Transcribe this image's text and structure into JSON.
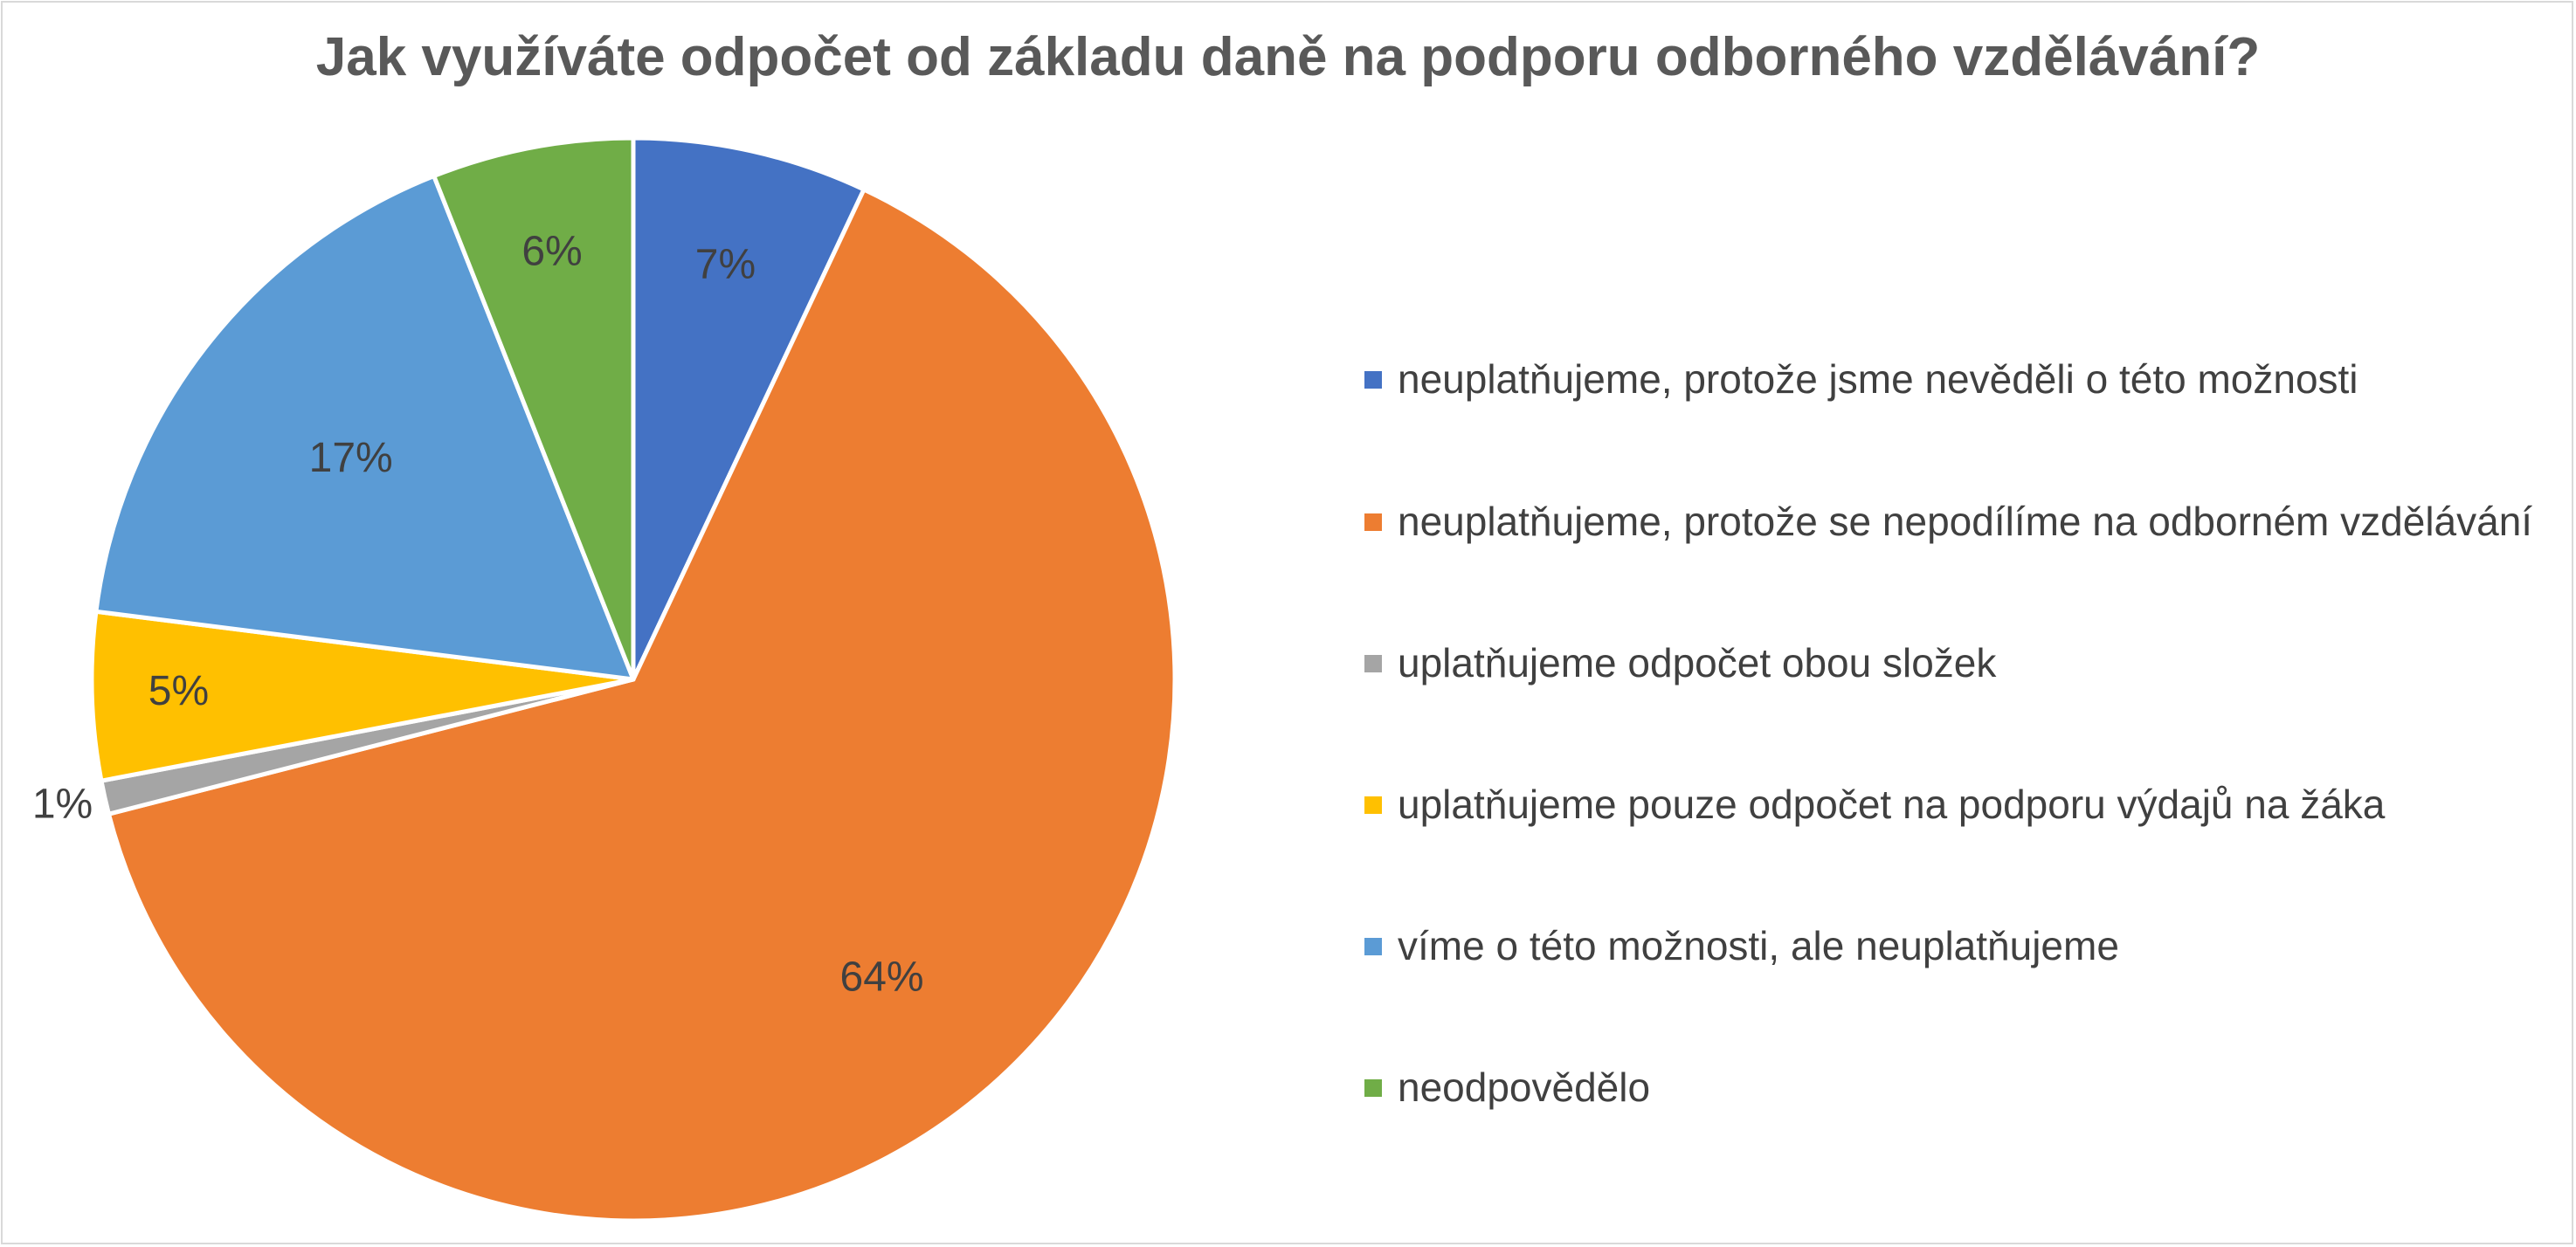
{
  "chart_data": {
    "type": "pie",
    "title": "Jak využíváte odpočet od základu daně na podporu odborného vzdělávání?",
    "categories": [
      "neuplatňujeme, protože jsme nevěděli o této možnosti",
      "neuplatňujeme, protože se nepodílíme na odborném vzdělávání",
      "uplatňujeme odpočet obou složek",
      "uplatňujeme pouze odpočet na podporu výdajů na žáka",
      "víme o této možnosti, ale neuplatňujeme",
      "neodpovědělo"
    ],
    "values": [
      7,
      64,
      1,
      5,
      17,
      6
    ],
    "value_labels": [
      "7%",
      "64%",
      "1%",
      "5%",
      "17%",
      "6%"
    ],
    "colors": [
      "#4472C4",
      "#ED7D31",
      "#A5A5A5",
      "#FFC000",
      "#5B9BD5",
      "#70AD47"
    ],
    "start_angle_deg": 0,
    "direction": "clockwise",
    "legend_position": "right"
  }
}
